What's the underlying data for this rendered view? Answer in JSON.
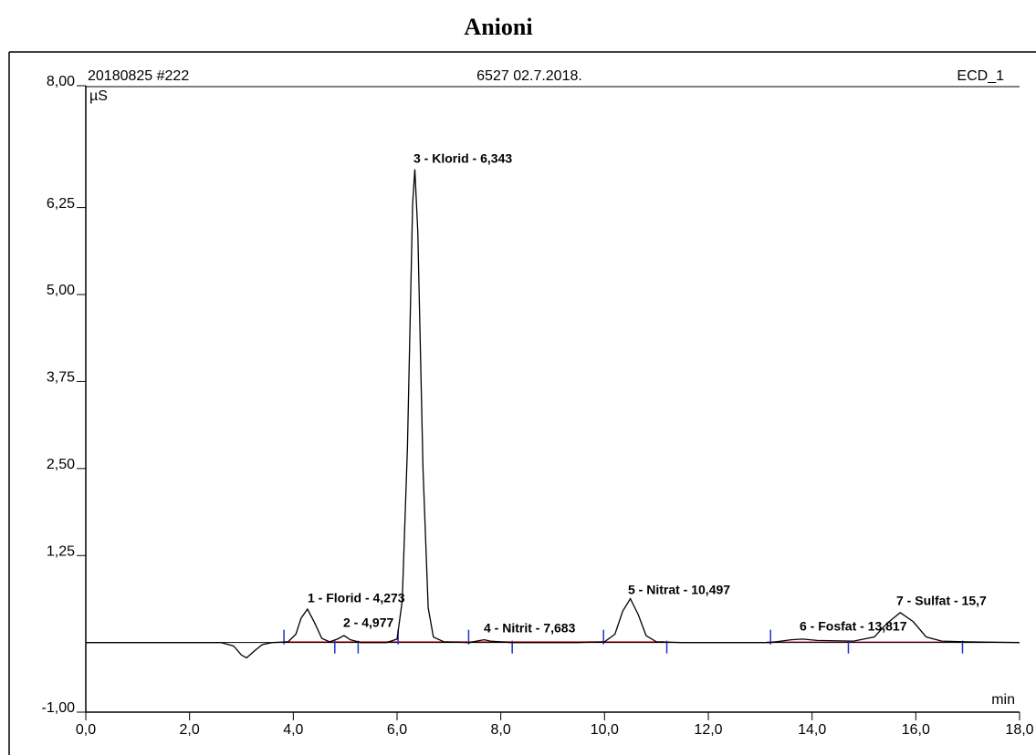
{
  "chart_data": {
    "type": "line",
    "title": "Anioni",
    "header_left": "20180825 #222",
    "header_center": "6527 02.7.2018.",
    "header_right": "ECD_1",
    "y_unit": "µS",
    "x_unit": "min",
    "xlim": [
      0,
      18
    ],
    "ylim": [
      -1,
      8
    ],
    "xticks": [
      {
        "value": 0,
        "label": "0,0"
      },
      {
        "value": 2,
        "label": "2,0"
      },
      {
        "value": 4,
        "label": "4,0"
      },
      {
        "value": 6,
        "label": "6,0"
      },
      {
        "value": 8,
        "label": "8,0"
      },
      {
        "value": 10,
        "label": "10,0"
      },
      {
        "value": 12,
        "label": "12,0"
      },
      {
        "value": 14,
        "label": "14,0"
      },
      {
        "value": 16,
        "label": "16,0"
      },
      {
        "value": 18,
        "label": "18,0"
      }
    ],
    "yticks": [
      {
        "value": -1,
        "label": "-1,00"
      },
      {
        "value": 1.25,
        "label": "1,25"
      },
      {
        "value": 2.5,
        "label": "2,50"
      },
      {
        "value": 3.75,
        "label": "3,75"
      },
      {
        "value": 5,
        "label": "5,00"
      },
      {
        "value": 6.25,
        "label": "6,25"
      },
      {
        "value": 8,
        "label": "8,00"
      }
    ],
    "x": [
      0,
      1,
      2,
      2.6,
      2.85,
      3.0,
      3.1,
      3.25,
      3.4,
      3.6,
      3.9,
      4.05,
      4.15,
      4.273,
      4.4,
      4.55,
      4.7,
      4.85,
      4.977,
      5.1,
      5.3,
      5.8,
      6.0,
      6.1,
      6.2,
      6.3,
      6.343,
      6.4,
      6.5,
      6.6,
      6.7,
      6.9,
      7.4,
      7.6,
      7.683,
      7.8,
      8.2,
      9.5,
      10.0,
      10.2,
      10.35,
      10.497,
      10.65,
      10.8,
      11.0,
      11.5,
      13.2,
      13.6,
      13.817,
      14.1,
      14.8,
      15.2,
      15.45,
      15.7,
      15.95,
      16.2,
      16.5,
      17.0,
      18
    ],
    "series": [
      {
        "name": "ECD_1",
        "color": "#000000",
        "values": [
          0,
          0,
          0,
          0,
          -0.05,
          -0.18,
          -0.22,
          -0.12,
          -0.03,
          0,
          0.01,
          0.12,
          0.35,
          0.48,
          0.3,
          0.06,
          0.01,
          0.05,
          0.1,
          0.04,
          0,
          0,
          0.05,
          0.6,
          2.8,
          6.3,
          6.8,
          5.9,
          2.5,
          0.5,
          0.08,
          0.01,
          0,
          0.03,
          0.04,
          0.02,
          0,
          0,
          0.01,
          0.12,
          0.45,
          0.63,
          0.4,
          0.1,
          0.01,
          0,
          0,
          0.04,
          0.05,
          0.03,
          0.02,
          0.08,
          0.28,
          0.43,
          0.3,
          0.08,
          0.02,
          0.01,
          0
        ]
      }
    ],
    "integration_ticks": [
      3.82,
      4.8,
      5.25,
      6.02,
      7.38,
      8.22,
      9.98,
      11.2,
      13.2,
      14.7,
      16.9
    ],
    "peak_labels": [
      "1 - Florid - 4,273",
      "2 - 4,977",
      "3 - Klorid - 6,343",
      "4 - Nitrit - 7,683",
      "5 - Nitrat - 10,497",
      "6 - Fosfat - 13,817",
      "7 - Sulfat - 15,7"
    ]
  }
}
